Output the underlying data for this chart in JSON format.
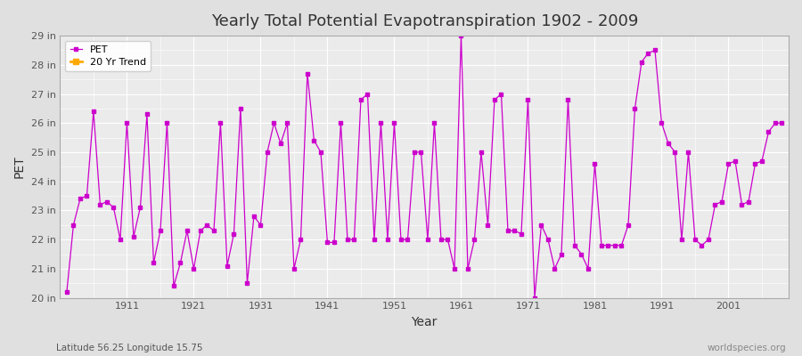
{
  "title": "Yearly Total Potential Evapotranspiration 1902 - 2009",
  "xlabel": "Year",
  "ylabel": "PET",
  "subtitle": "Latitude 56.25 Longitude 15.75",
  "watermark": "worldspecies.org",
  "ylim": [
    20,
    29
  ],
  "xlim": [
    1901,
    2010
  ],
  "yticks": [
    20,
    21,
    22,
    23,
    24,
    25,
    26,
    27,
    28,
    29
  ],
  "ytick_labels": [
    "20 in",
    "21 in",
    "22 in",
    "23 in",
    "24 in",
    "25 in",
    "26 in",
    "27 in",
    "28 in",
    "29 in"
  ],
  "xticks": [
    1911,
    1921,
    1931,
    1941,
    1951,
    1961,
    1971,
    1981,
    1991,
    2001
  ],
  "pet_color": "#cc00cc",
  "trend_color": "#ffaa00",
  "bg_color": "#e0e0e0",
  "plot_bg_color": "#ebebeb",
  "grid_color": "#ffffff",
  "years": [
    1902,
    1903,
    1904,
    1905,
    1906,
    1907,
    1908,
    1909,
    1910,
    1911,
    1912,
    1913,
    1914,
    1915,
    1916,
    1917,
    1918,
    1919,
    1920,
    1921,
    1922,
    1923,
    1924,
    1925,
    1926,
    1927,
    1928,
    1929,
    1930,
    1931,
    1932,
    1933,
    1934,
    1935,
    1936,
    1937,
    1938,
    1939,
    1940,
    1941,
    1942,
    1943,
    1944,
    1945,
    1946,
    1947,
    1948,
    1949,
    1950,
    1951,
    1952,
    1953,
    1954,
    1955,
    1956,
    1957,
    1958,
    1959,
    1960,
    1961,
    1962,
    1963,
    1964,
    1965,
    1966,
    1967,
    1968,
    1969,
    1970,
    1971,
    1972,
    1973,
    1974,
    1975,
    1976,
    1977,
    1978,
    1979,
    1980,
    1981,
    1982,
    1983,
    1984,
    1985,
    1986,
    1987,
    1988,
    1989,
    1990,
    1991,
    1992,
    1993,
    1994,
    1995,
    1996,
    1997,
    1998,
    1999,
    2000,
    2001,
    2002,
    2003,
    2004,
    2005,
    2006,
    2007,
    2008,
    2009
  ],
  "pet_values": [
    20.2,
    22.5,
    23.4,
    23.5,
    26.4,
    23.2,
    23.3,
    23.1,
    22.0,
    26.0,
    22.1,
    23.1,
    26.3,
    21.2,
    22.3,
    26.0,
    20.4,
    21.2,
    22.3,
    21.0,
    22.3,
    22.5,
    22.3,
    26.0,
    21.1,
    22.2,
    26.5,
    20.5,
    22.8,
    22.5,
    25.0,
    26.0,
    25.3,
    26.0,
    21.0,
    22.0,
    27.7,
    25.4,
    25.0,
    21.9,
    21.9,
    26.0,
    22.0,
    22.0,
    26.8,
    27.0,
    22.0,
    26.0,
    22.0,
    26.0,
    22.0,
    22.0,
    25.0,
    25.0,
    22.0,
    26.0,
    22.0,
    22.0,
    21.0,
    29.0,
    21.0,
    22.0,
    25.0,
    22.5,
    26.8,
    27.0,
    22.3,
    22.3,
    22.2,
    26.8,
    20.0,
    22.5,
    22.0,
    21.0,
    21.5,
    26.8,
    21.8,
    21.5,
    21.0,
    24.6,
    21.8,
    21.8,
    21.8,
    21.8,
    22.5,
    26.5,
    28.1,
    28.4,
    28.5,
    26.0,
    25.3,
    25.0,
    22.0,
    25.0,
    22.0,
    21.8,
    22.0,
    23.2,
    23.3,
    24.6,
    24.7,
    23.2,
    23.3,
    24.6,
    24.7,
    25.7,
    26.0,
    26.0
  ]
}
